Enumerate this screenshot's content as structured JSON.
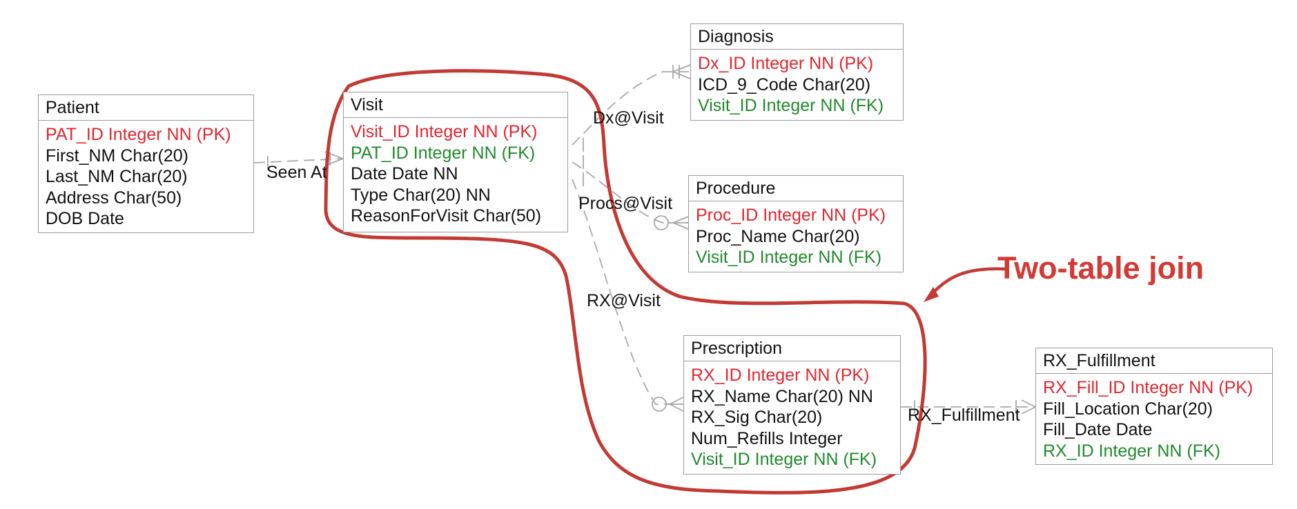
{
  "colors": {
    "pk": "#e0262e",
    "fk": "#1f8a2a",
    "plain": "#111111",
    "annotation": "#d23b35",
    "border": "#9a9a9a",
    "connector": "#a8a8a8"
  },
  "entities": {
    "patient": {
      "title": "Patient",
      "attributes": [
        {
          "text": "PAT_ID Integer NN (PK)",
          "kind": "pk"
        },
        {
          "text": "First_NM Char(20)",
          "kind": "plain"
        },
        {
          "text": "Last_NM Char(20)",
          "kind": "plain"
        },
        {
          "text": "Address Char(50)",
          "kind": "plain"
        },
        {
          "text": "DOB Date",
          "kind": "plain"
        }
      ]
    },
    "visit": {
      "title": "Visit",
      "attributes": [
        {
          "text": "Visit_ID Integer NN (PK)",
          "kind": "pk"
        },
        {
          "text": "PAT_ID Integer NN (FK)",
          "kind": "fk"
        },
        {
          "text": "Date Date NN",
          "kind": "plain"
        },
        {
          "text": "Type Char(20) NN",
          "kind": "plain"
        },
        {
          "text": "ReasonForVisit Char(50)",
          "kind": "plain"
        }
      ]
    },
    "diagnosis": {
      "title": "Diagnosis",
      "attributes": [
        {
          "text": "Dx_ID Integer NN (PK)",
          "kind": "pk"
        },
        {
          "text": "ICD_9_Code Char(20)",
          "kind": "plain"
        },
        {
          "text": "Visit_ID Integer NN (FK)",
          "kind": "fk"
        }
      ]
    },
    "procedure": {
      "title": "Procedure",
      "attributes": [
        {
          "text": "Proc_ID Integer NN (PK)",
          "kind": "pk"
        },
        {
          "text": "Proc_Name Char(20)",
          "kind": "plain"
        },
        {
          "text": "Visit_ID Integer NN (FK)",
          "kind": "fk"
        }
      ]
    },
    "prescription": {
      "title": "Prescription",
      "attributes": [
        {
          "text": "RX_ID Integer NN (PK)",
          "kind": "pk"
        },
        {
          "text": "RX_Name Char(20) NN",
          "kind": "plain"
        },
        {
          "text": "RX_Sig Char(20)",
          "kind": "plain"
        },
        {
          "text": "Num_Refills Integer",
          "kind": "plain"
        },
        {
          "text": "Visit_ID Integer NN (FK)",
          "kind": "fk"
        }
      ]
    },
    "rx_fulfillment": {
      "title": "RX_Fulfillment",
      "attributes": [
        {
          "text": "RX_Fill_ID Integer NN (PK)",
          "kind": "pk"
        },
        {
          "text": "Fill_Location Char(20)",
          "kind": "plain"
        },
        {
          "text": "Fill_Date Date",
          "kind": "plain"
        },
        {
          "text": "RX_ID Integer NN (FK)",
          "kind": "fk"
        }
      ]
    }
  },
  "relationships": {
    "seen_at": "Seen At",
    "dx_at_visit": "Dx@Visit",
    "procs_at_visit": "Procs@Visit",
    "rx_at_visit": "RX@Visit",
    "rx_fulfillment": "RX_Fulfillment"
  },
  "annotation": {
    "text": "Two-table join"
  }
}
